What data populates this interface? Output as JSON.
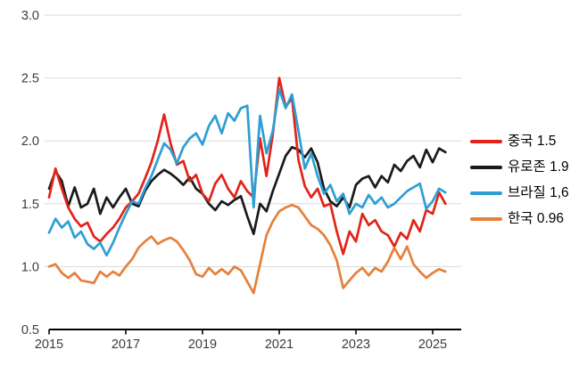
{
  "chart_data": {
    "type": "line",
    "title": "",
    "grid": "horizontal",
    "legend_position": "right",
    "x_axis": {
      "tick_labels": [
        "2015",
        "2017",
        "2019",
        "2021",
        "2023",
        "2025"
      ],
      "tick_years": [
        2015,
        2017,
        2019,
        2021,
        2023,
        2025
      ],
      "start_year": 2015,
      "step_years": 0.166667,
      "xlim": [
        2015,
        2025.75
      ]
    },
    "y_axis": {
      "tick_labels": [
        "3.0",
        "2.5",
        "2.0",
        "1.5",
        "1.0",
        "0.5"
      ],
      "tick_values": [
        3.0,
        2.5,
        2.0,
        1.5,
        1.0,
        0.5
      ],
      "ylim": [
        0.5,
        3.0
      ]
    },
    "series": [
      {
        "id": "china",
        "name": "중국",
        "legend_label": "중국 1.5",
        "latest_value": 1.5,
        "color": "#e2231a",
        "values": [
          1.55,
          1.78,
          1.62,
          1.47,
          1.38,
          1.32,
          1.35,
          1.24,
          1.2,
          1.26,
          1.31,
          1.38,
          1.47,
          1.52,
          1.58,
          1.7,
          1.83,
          2.0,
          2.21,
          1.98,
          1.81,
          1.84,
          1.68,
          1.73,
          1.58,
          1.52,
          1.66,
          1.73,
          1.62,
          1.55,
          1.68,
          1.6,
          1.55,
          2.02,
          1.72,
          2.05,
          2.5,
          2.27,
          2.34,
          1.85,
          1.64,
          1.55,
          1.62,
          1.48,
          1.5,
          1.28,
          1.1,
          1.28,
          1.2,
          1.42,
          1.33,
          1.37,
          1.28,
          1.25,
          1.16,
          1.27,
          1.22,
          1.37,
          1.28,
          1.45,
          1.42,
          1.59,
          1.5
        ]
      },
      {
        "id": "eurozone",
        "name": "유로존",
        "legend_label": "유로존 1.9",
        "latest_value": 1.9,
        "color": "#1a1a1a",
        "values": [
          1.62,
          1.76,
          1.68,
          1.48,
          1.63,
          1.47,
          1.5,
          1.62,
          1.42,
          1.55,
          1.47,
          1.55,
          1.62,
          1.5,
          1.48,
          1.6,
          1.68,
          1.73,
          1.77,
          1.74,
          1.7,
          1.65,
          1.71,
          1.62,
          1.58,
          1.5,
          1.45,
          1.52,
          1.49,
          1.53,
          1.56,
          1.4,
          1.26,
          1.5,
          1.44,
          1.6,
          1.74,
          1.88,
          1.95,
          1.93,
          1.87,
          1.94,
          1.83,
          1.62,
          1.52,
          1.48,
          1.55,
          1.47,
          1.65,
          1.7,
          1.72,
          1.63,
          1.72,
          1.67,
          1.81,
          1.76,
          1.84,
          1.88,
          1.79,
          1.93,
          1.83,
          1.94,
          1.91
        ]
      },
      {
        "id": "brazil",
        "name": "브라질",
        "legend_label": "브라질 1,6",
        "latest_value": 1.6,
        "color": "#2c9fd4",
        "values": [
          1.27,
          1.38,
          1.31,
          1.36,
          1.23,
          1.28,
          1.18,
          1.14,
          1.19,
          1.09,
          1.19,
          1.31,
          1.42,
          1.52,
          1.5,
          1.62,
          1.72,
          1.85,
          1.98,
          1.93,
          1.82,
          1.95,
          2.02,
          2.06,
          1.97,
          2.12,
          2.2,
          2.06,
          2.22,
          2.16,
          2.26,
          2.28,
          1.47,
          2.2,
          1.9,
          2.08,
          2.41,
          2.26,
          2.37,
          2.08,
          1.78,
          1.9,
          1.72,
          1.58,
          1.65,
          1.52,
          1.58,
          1.42,
          1.5,
          1.47,
          1.57,
          1.5,
          1.55,
          1.47,
          1.5,
          1.55,
          1.6,
          1.63,
          1.66,
          1.46,
          1.52,
          1.62,
          1.59
        ]
      },
      {
        "id": "korea",
        "name": "한국",
        "legend_label": "한국 0.96",
        "latest_value": 0.96,
        "color": "#e5803c",
        "values": [
          1.0,
          1.02,
          0.95,
          0.91,
          0.95,
          0.89,
          0.88,
          0.87,
          0.96,
          0.92,
          0.96,
          0.93,
          1.0,
          1.06,
          1.15,
          1.2,
          1.24,
          1.18,
          1.21,
          1.23,
          1.2,
          1.13,
          1.05,
          0.94,
          0.92,
          0.99,
          0.94,
          0.98,
          0.94,
          1.0,
          0.97,
          0.88,
          0.79,
          1.02,
          1.25,
          1.36,
          1.44,
          1.47,
          1.49,
          1.47,
          1.4,
          1.33,
          1.3,
          1.25,
          1.17,
          1.05,
          0.83,
          0.89,
          0.95,
          0.99,
          0.93,
          0.99,
          0.96,
          1.04,
          1.15,
          1.06,
          1.16,
          1.02,
          0.96,
          0.91,
          0.95,
          0.98,
          0.96
        ]
      }
    ]
  },
  "colors": {
    "background": "#ffffff",
    "gridline": "#d9d9d9",
    "axis": "#000000",
    "tick_label": "#3d3d3d",
    "legend_text": "#000000"
  }
}
